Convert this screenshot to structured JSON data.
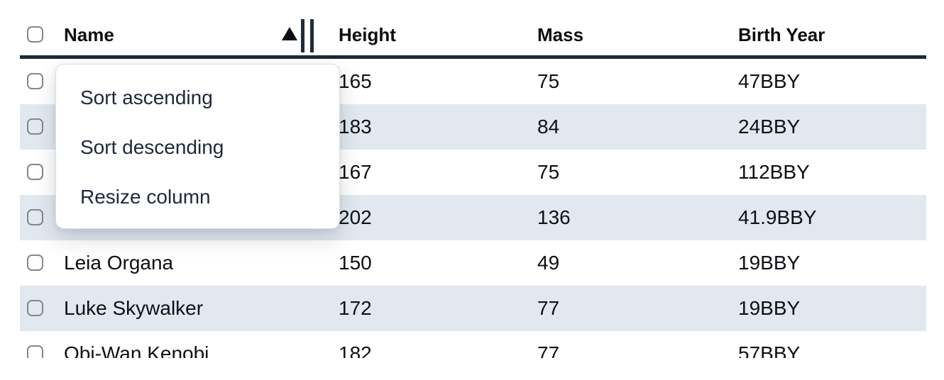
{
  "colors": {
    "header_border": "#1e293b",
    "row_stripe": "#e2e8f0",
    "menu_text": "#20293a",
    "checkbox_border": "#85878c"
  },
  "table": {
    "columns": [
      {
        "label": "Name"
      },
      {
        "label": "Height"
      },
      {
        "label": "Mass"
      },
      {
        "label": "Birth Year"
      }
    ],
    "sort": {
      "column": "Name",
      "direction": "ascending"
    },
    "rows": [
      {
        "name": "",
        "height": "165",
        "mass": "75",
        "birth_year": "47BBY"
      },
      {
        "name": "",
        "height": "183",
        "mass": "84",
        "birth_year": "24BBY"
      },
      {
        "name": "",
        "height": "167",
        "mass": "75",
        "birth_year": "112BBY"
      },
      {
        "name": "",
        "height": "202",
        "mass": "136",
        "birth_year": "41.9BBY"
      },
      {
        "name": "Leia Organa",
        "height": "150",
        "mass": "49",
        "birth_year": "19BBY"
      },
      {
        "name": "Luke Skywalker",
        "height": "172",
        "mass": "77",
        "birth_year": "19BBY"
      },
      {
        "name": "Obi-Wan Kenobi",
        "height": "182",
        "mass": "77",
        "birth_year": "57BBY"
      }
    ]
  },
  "menu": {
    "items": [
      {
        "label": "Sort ascending"
      },
      {
        "label": "Sort descending"
      },
      {
        "label": "Resize column"
      }
    ]
  }
}
